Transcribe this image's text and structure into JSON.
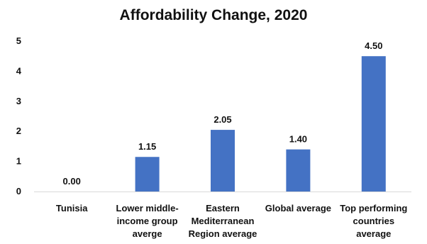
{
  "chart_data": {
    "type": "bar",
    "title": "Affordability Change, 2020",
    "categories": [
      [
        "Tunisia"
      ],
      [
        "Lower middle-",
        "income group",
        "averge"
      ],
      [
        "Eastern",
        "Mediterranean",
        "Region average"
      ],
      [
        "Global average"
      ],
      [
        "Top performing",
        "countries",
        "average"
      ]
    ],
    "values": [
      0.0,
      1.15,
      2.05,
      1.4,
      4.5
    ],
    "data_labels": [
      "0.00",
      "1.15",
      "2.05",
      "1.40",
      "4.50"
    ],
    "y_ticks": [
      "0",
      "1",
      "2",
      "3",
      "4",
      "5"
    ],
    "ylim": [
      0,
      5
    ],
    "xlabel": "",
    "ylabel": "",
    "grid": false,
    "legend": "none",
    "bar_color": "#4472C4",
    "axis_color": "#D9D9D9"
  }
}
